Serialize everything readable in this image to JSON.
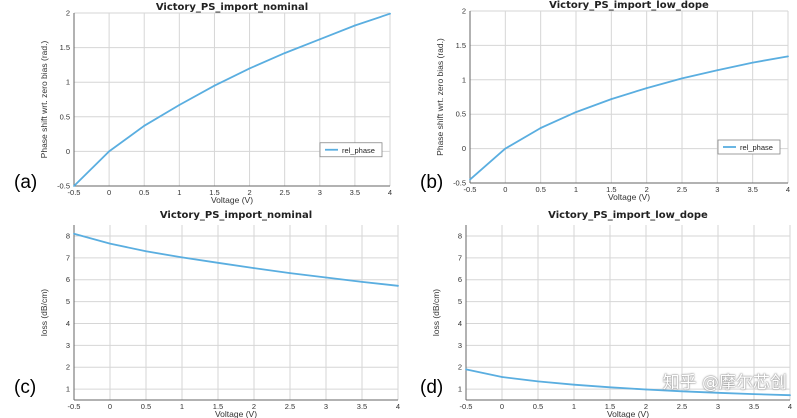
{
  "chart_data": [
    {
      "type": "line",
      "panel": "(a)",
      "title": "Victory_PS_import_nominal",
      "xlabel": "Voltage (V)",
      "ylabel": "Phase shift wrt. zero bias (rad.)",
      "xlim": [
        -0.5,
        4
      ],
      "ylim": [
        -0.5,
        2
      ],
      "xticks": [
        "-0.5",
        "0",
        "0.5",
        "1",
        "1.5",
        "2",
        "2.5",
        "3",
        "3.5",
        "4"
      ],
      "yticks": [
        "-0.5",
        "0",
        "0.5",
        "1",
        "1.5",
        "2"
      ],
      "legend": "rel_phase",
      "series": [
        {
          "name": "rel_phase",
          "color": "#5aaee0",
          "x": [
            -0.5,
            0,
            0.5,
            1,
            1.5,
            2,
            2.5,
            3,
            3.5,
            4
          ],
          "y": [
            -0.5,
            0,
            0.37,
            0.67,
            0.95,
            1.2,
            1.42,
            1.62,
            1.82,
            1.99
          ]
        }
      ]
    },
    {
      "type": "line",
      "panel": "(b)",
      "title": "Victory_PS_import_low_dope",
      "xlabel": "Voltage (V)",
      "ylabel": "Phase shift wrt. zero bias (rad.)",
      "xlim": [
        -0.5,
        4
      ],
      "ylim": [
        -0.5,
        2
      ],
      "xticks": [
        "-0.5",
        "0",
        "0.5",
        "1",
        "1.5",
        "2",
        "2.5",
        "3",
        "3.5",
        "4"
      ],
      "yticks": [
        "-0.5",
        "0",
        "0.5",
        "1",
        "1.5",
        "2"
      ],
      "legend": "rel_phase",
      "series": [
        {
          "name": "rel_phase",
          "color": "#5aaee0",
          "x": [
            -0.5,
            0,
            0.5,
            1,
            1.5,
            2,
            2.5,
            3,
            3.5,
            4
          ],
          "y": [
            -0.45,
            0,
            0.3,
            0.53,
            0.72,
            0.88,
            1.02,
            1.14,
            1.25,
            1.34
          ]
        }
      ]
    },
    {
      "type": "line",
      "panel": "(c)",
      "title": "Victory_PS_import_nominal",
      "xlabel": "Voltage (V)",
      "ylabel": "loss (dB/cm)",
      "xlim": [
        -0.5,
        4
      ],
      "ylim": [
        0.5,
        8.5
      ],
      "xticks": [
        "-0.5",
        "0",
        "0.5",
        "1",
        "1.5",
        "2",
        "2.5",
        "3",
        "3.5",
        "4"
      ],
      "yticks": [
        "1",
        "2",
        "3",
        "4",
        "5",
        "6",
        "7",
        "8"
      ],
      "legend": "",
      "series": [
        {
          "name": "loss",
          "color": "#5aaee0",
          "x": [
            -0.5,
            0,
            0.5,
            1,
            1.5,
            2,
            2.5,
            3,
            3.5,
            4
          ],
          "y": [
            8.1,
            7.65,
            7.3,
            7.02,
            6.77,
            6.53,
            6.3,
            6.1,
            5.9,
            5.72
          ]
        }
      ]
    },
    {
      "type": "line",
      "panel": "(d)",
      "title": "Victory_PS_import_low_dope",
      "xlabel": "Voltage (V)",
      "ylabel": "loss (dB/cm)",
      "xlim": [
        -0.5,
        4
      ],
      "ylim": [
        0.5,
        8.5
      ],
      "xticks": [
        "-0.5",
        "0",
        "0.5",
        "1",
        "1.5",
        "2",
        "2.5",
        "3",
        "3.5",
        "4"
      ],
      "yticks": [
        "1",
        "2",
        "3",
        "4",
        "5",
        "6",
        "7",
        "8"
      ],
      "legend": "",
      "series": [
        {
          "name": "loss",
          "color": "#5aaee0",
          "x": [
            -0.5,
            0,
            0.5,
            1,
            1.5,
            2,
            2.5,
            3,
            3.5,
            4
          ],
          "y": [
            1.9,
            1.55,
            1.35,
            1.2,
            1.08,
            0.98,
            0.9,
            0.83,
            0.77,
            0.72
          ]
        }
      ]
    }
  ],
  "watermark": "知乎 @摩尔芯创"
}
